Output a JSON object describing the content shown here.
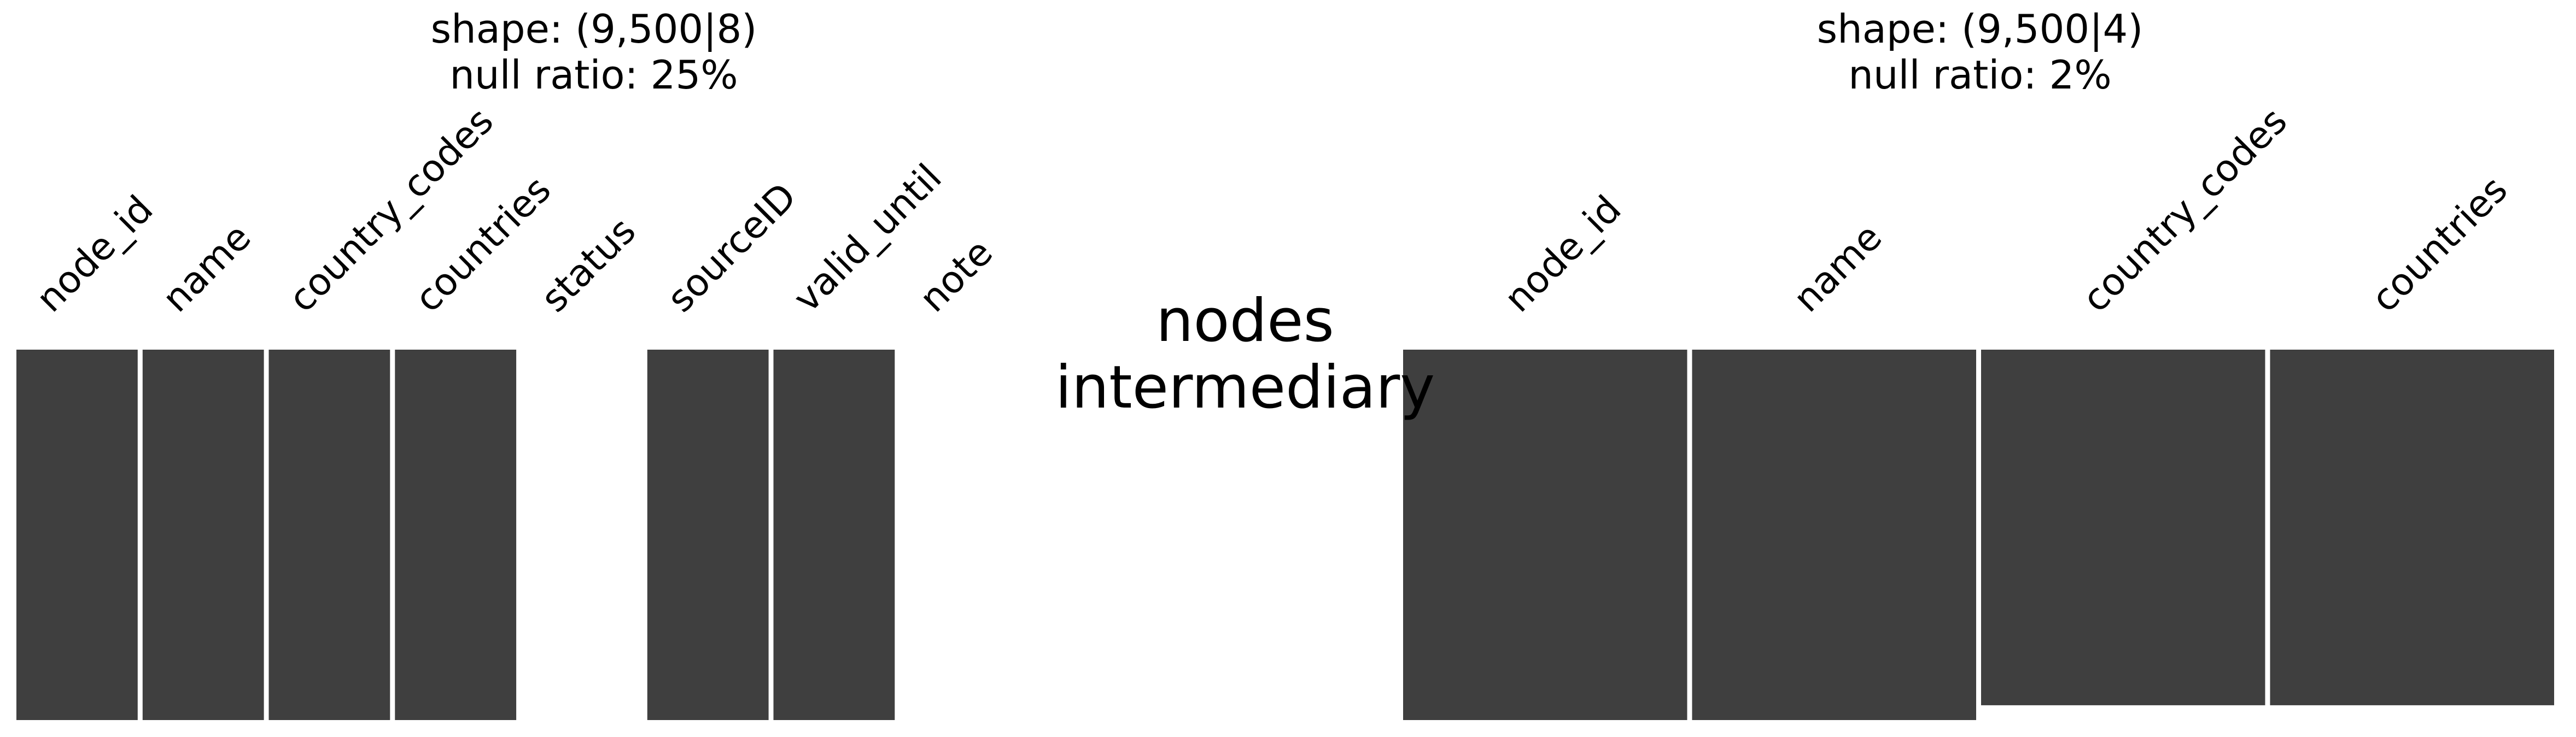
{
  "figure_title": "nodes\nintermediary",
  "colors": {
    "present": "#3f3f3f",
    "missing": "#ffffff",
    "separator": "#ffffff",
    "text": "#000000"
  },
  "chart_data": [
    {
      "type": "missingness-matrix",
      "title": "shape: (9,500|8)\nnull ratio: 25%",
      "shape_label": "shape: (9,500|8)",
      "null_ratio_label": "null ratio: 25%",
      "rows": 9500,
      "columns": [
        "node_id",
        "name",
        "country_codes",
        "countries",
        "status",
        "sourceID",
        "valid_until",
        "note"
      ],
      "present_fraction": [
        1.0,
        1.0,
        1.0,
        1.0,
        0.0,
        1.0,
        1.0,
        0.0
      ]
    },
    {
      "type": "missingness-matrix",
      "title": "shape: (9,500|4)\nnull ratio: 2%",
      "shape_label": "shape: (9,500|4)",
      "null_ratio_label": "null ratio: 2%",
      "rows": 9500,
      "columns": [
        "node_id",
        "name",
        "country_codes",
        "countries"
      ],
      "present_fraction": [
        1.0,
        1.0,
        0.96,
        0.96
      ]
    }
  ]
}
